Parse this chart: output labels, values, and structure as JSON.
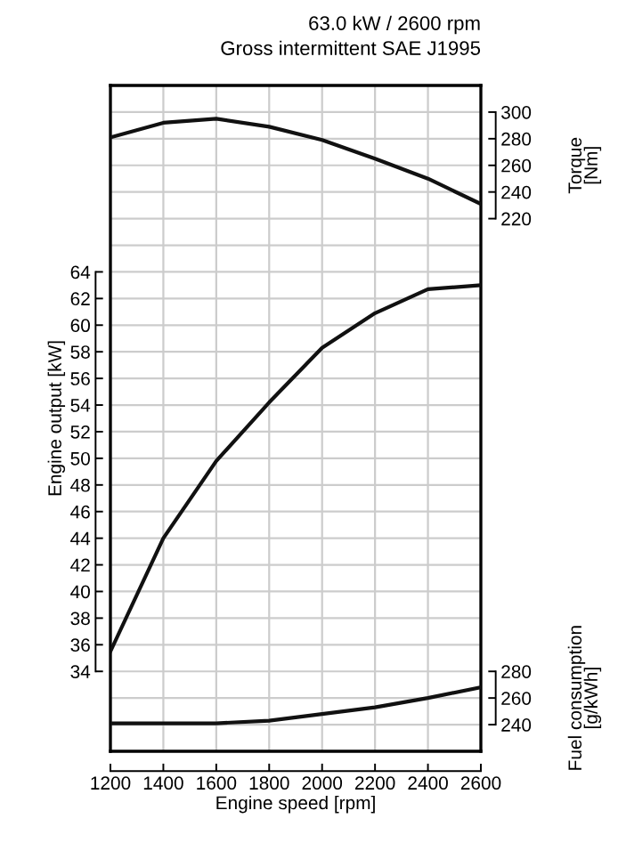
{
  "chart_data": {
    "type": "line",
    "title": "63.0 kW / 2600 rpm",
    "subtitle": "Gross intermittent SAE J1995",
    "xlabel": "Engine speed [rpm]",
    "ylabel": "Engine output [kW]",
    "y2label": "Torque\n[Nm]",
    "y3label": "Fuel consumption\n[g/kWh]",
    "x": [
      1200,
      1400,
      1600,
      1800,
      2000,
      2200,
      2400,
      2600
    ],
    "series": [
      {
        "color": "#111111",
        "axis": "y2",
        "values": [
          281,
          292,
          295,
          289,
          279,
          265,
          250,
          231
        ]
      },
      {
        "color": "#111111",
        "axis": "y",
        "values": [
          35.5,
          44,
          49.8,
          54.2,
          58.3,
          60.9,
          62.7,
          63.0
        ]
      },
      {
        "color": "#111111",
        "axis": "y3",
        "values": [
          241,
          241,
          241,
          243,
          248,
          253,
          260,
          268
        ]
      }
    ],
    "xlim": [
      1200,
      2600
    ],
    "xticks": [
      1200,
      1400,
      1600,
      1800,
      2000,
      2200,
      2400,
      2600
    ],
    "ylim": [
      28,
      78
    ],
    "yticks": [
      34,
      36,
      38,
      40,
      42,
      44,
      46,
      48,
      50,
      52,
      54,
      56,
      58,
      60,
      62,
      64
    ],
    "y2lim": [
      -180,
      320
    ],
    "y2ticks": [
      220,
      240,
      260,
      280,
      300
    ],
    "y3lim": [
      220,
      720
    ],
    "y3ticks": [
      240,
      260,
      280
    ],
    "grid": true,
    "marker": "none",
    "line_style": "solid"
  }
}
